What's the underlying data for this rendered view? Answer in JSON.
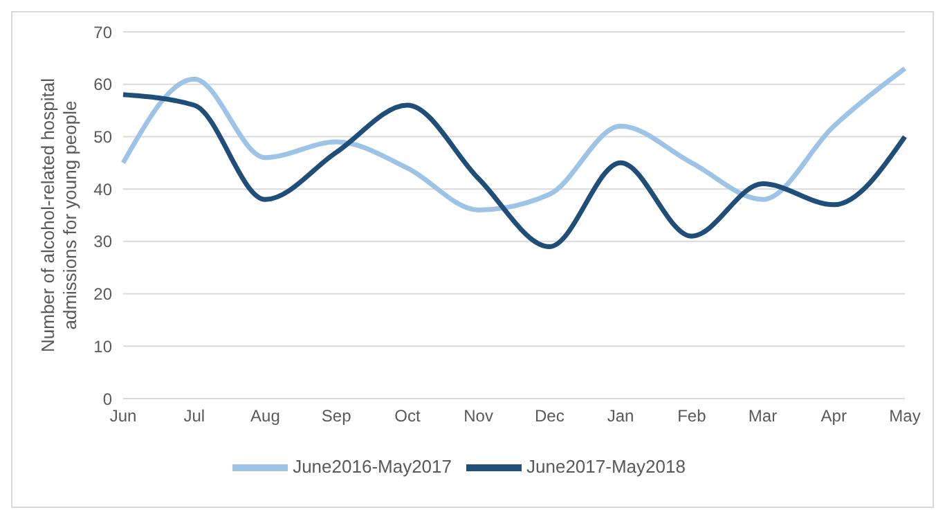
{
  "chart_data": {
    "type": "line",
    "ylabel": "Number of alcohol-related hospital admissions for young people",
    "categories": [
      "Jun",
      "Jul",
      "Aug",
      "Sep",
      "Oct",
      "Nov",
      "Dec",
      "Jan",
      "Feb",
      "Mar",
      "Apr",
      "May"
    ],
    "series": [
      {
        "name": "June2016-May2017",
        "color": "#9dc3e6",
        "values": [
          45,
          61,
          46,
          49,
          44,
          36,
          39,
          52,
          45,
          38,
          52,
          63
        ]
      },
      {
        "name": "June2017-May2018",
        "color": "#1f4e79",
        "values": [
          58,
          56,
          38,
          47,
          56,
          42,
          29,
          45,
          31,
          41,
          37,
          50
        ]
      }
    ],
    "ylim": [
      0,
      70
    ],
    "yticks": [
      0,
      10,
      20,
      30,
      40,
      50,
      60,
      70
    ],
    "grid": "y",
    "legend": "bottom",
    "marker": "none",
    "line_style": "solid"
  }
}
